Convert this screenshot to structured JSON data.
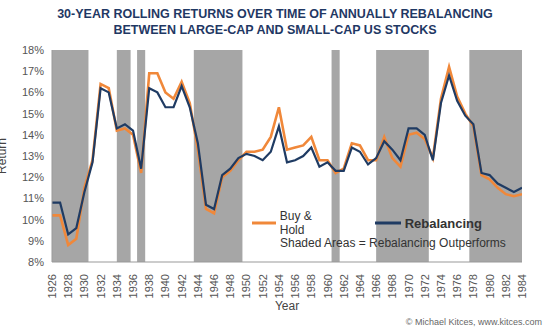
{
  "chart_data": {
    "type": "line",
    "title": "30-YEAR ROLLING RETURNS OVER TIME OF ANNUALLY REBALANCING\nBETWEEN LARGE-CAP AND SMALL-CAP US STOCKS",
    "x_label": "Year",
    "y_label": "Return",
    "x": [
      1926,
      1927,
      1928,
      1929,
      1930,
      1931,
      1932,
      1933,
      1934,
      1935,
      1936,
      1937,
      1938,
      1939,
      1940,
      1941,
      1942,
      1943,
      1944,
      1945,
      1946,
      1947,
      1948,
      1949,
      1950,
      1951,
      1952,
      1953,
      1954,
      1955,
      1956,
      1957,
      1958,
      1959,
      1960,
      1961,
      1962,
      1963,
      1964,
      1965,
      1966,
      1967,
      1968,
      1969,
      1970,
      1971,
      1972,
      1973,
      1974,
      1975,
      1976,
      1977,
      1978,
      1979,
      1980,
      1981,
      1982,
      1983,
      1984
    ],
    "series": [
      {
        "name": "Buy & Hold",
        "color": "#f0883a",
        "values": [
          10.2,
          10.2,
          8.8,
          9.1,
          11.5,
          12.8,
          16.4,
          16.2,
          14.2,
          14.3,
          14.0,
          12.2,
          16.9,
          16.9,
          16.0,
          15.7,
          16.5,
          15.5,
          13.3,
          10.5,
          10.3,
          12.0,
          12.3,
          12.8,
          13.2,
          13.2,
          13.3,
          13.9,
          15.3,
          13.3,
          13.4,
          13.5,
          13.9,
          12.8,
          12.8,
          12.2,
          12.4,
          13.6,
          13.5,
          12.8,
          12.8,
          13.9,
          12.9,
          12.5,
          14.0,
          14.1,
          13.8,
          12.9,
          15.7,
          17.2,
          15.8,
          15.0,
          14.4,
          12.1,
          11.9,
          11.5,
          11.2,
          11.1,
          11.2
        ]
      },
      {
        "name": "Rebalancing",
        "color": "#1f3b63",
        "values": [
          10.8,
          10.8,
          9.3,
          9.6,
          11.3,
          12.7,
          16.2,
          16.0,
          14.3,
          14.5,
          14.2,
          12.4,
          16.2,
          16.0,
          15.3,
          15.3,
          16.3,
          15.3,
          13.6,
          10.7,
          10.5,
          12.1,
          12.4,
          12.9,
          13.1,
          13.0,
          12.8,
          13.2,
          14.4,
          12.7,
          12.8,
          13.0,
          13.4,
          12.5,
          12.7,
          12.3,
          12.3,
          13.4,
          13.2,
          12.6,
          12.9,
          13.7,
          13.3,
          12.8,
          14.3,
          14.3,
          14.0,
          12.8,
          15.5,
          16.8,
          15.6,
          14.9,
          14.5,
          12.2,
          12.1,
          11.7,
          11.5,
          11.3,
          11.5
        ]
      }
    ],
    "xlim": [
      1926,
      1984
    ],
    "xticks": [
      1926,
      1928,
      1930,
      1932,
      1934,
      1936,
      1938,
      1940,
      1942,
      1944,
      1946,
      1948,
      1950,
      1952,
      1954,
      1956,
      1958,
      1960,
      1962,
      1964,
      1966,
      1968,
      1970,
      1972,
      1974,
      1976,
      1978,
      1980,
      1982,
      1984
    ],
    "ylim": [
      8,
      18
    ],
    "yticks": [
      {
        "value": 8,
        "label": "8%"
      },
      {
        "value": 9,
        "label": "9%"
      },
      {
        "value": 10,
        "label": "10%"
      },
      {
        "value": 11,
        "label": "11%"
      },
      {
        "value": 12,
        "label": "12%"
      },
      {
        "value": 13,
        "label": "13%"
      },
      {
        "value": 14,
        "label": "14%"
      },
      {
        "value": 15,
        "label": "15%"
      },
      {
        "value": 16,
        "label": "16%"
      },
      {
        "value": 17,
        "label": "17%"
      },
      {
        "value": 18,
        "label": "18%"
      }
    ],
    "grid": false,
    "legend": "lower right",
    "shaded_ranges": [
      [
        1926,
        1930.5
      ],
      [
        1934,
        1935.7
      ],
      [
        1936.5,
        1937.5
      ],
      [
        1943.5,
        1949.5
      ],
      [
        1960.5,
        1961.5
      ],
      [
        1966,
        1972.5
      ],
      [
        1977.5,
        1984
      ]
    ],
    "shaded_label": "Shaded Areas = Rebalancing Outperforms",
    "source": "© Michael Kitces, www.kitces.com"
  }
}
